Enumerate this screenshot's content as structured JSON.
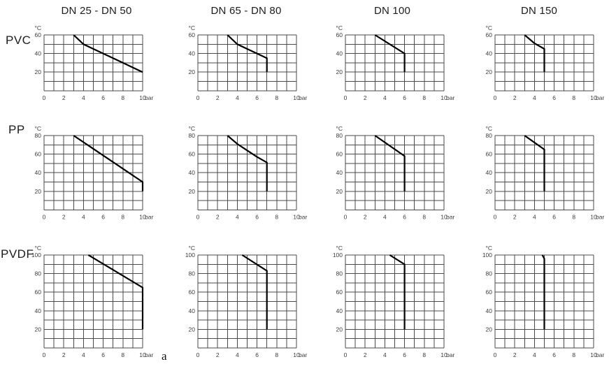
{
  "figure": {
    "label": "a",
    "description": "Pressure-temperature rating diagrams"
  },
  "colors": {
    "grid": "#4a4a4a",
    "line": "#000000",
    "text": "#3c3c3c",
    "heading": "#1c1c1c",
    "background": "#ffffff"
  },
  "columns": [
    "DN 25 - DN 50",
    "DN 65 - DN 80",
    "DN 100",
    "DN 150"
  ],
  "rows": [
    "PVC",
    "PP",
    "PVDF"
  ],
  "chart_data": [
    {
      "material": "PVC",
      "size_range": "DN 25 - DN 50",
      "type": "line",
      "xlabel": "bar",
      "ylabel": "°C",
      "xlim": [
        0,
        10
      ],
      "ylim": [
        0,
        60
      ],
      "xticks": [
        0,
        2,
        4,
        6,
        8,
        10
      ],
      "yticks": [
        20,
        40,
        60
      ],
      "x_grid_step": 1,
      "y_grid_step": 10,
      "grid": true,
      "points": [
        [
          3,
          60
        ],
        [
          4,
          50
        ],
        [
          5,
          45
        ],
        [
          6,
          40
        ],
        [
          7,
          35
        ],
        [
          8,
          30
        ],
        [
          9,
          25
        ],
        [
          10,
          20
        ]
      ]
    },
    {
      "material": "PVC",
      "size_range": "DN 65 - DN 80",
      "type": "line",
      "xlabel": "bar",
      "ylabel": "°C",
      "xlim": [
        0,
        10
      ],
      "ylim": [
        0,
        60
      ],
      "xticks": [
        0,
        2,
        4,
        6,
        8,
        10
      ],
      "yticks": [
        20,
        40,
        60
      ],
      "x_grid_step": 1,
      "y_grid_step": 10,
      "grid": true,
      "points": [
        [
          3,
          60
        ],
        [
          4,
          50
        ],
        [
          5,
          45
        ],
        [
          6,
          40
        ],
        [
          7,
          35
        ],
        [
          7,
          20
        ]
      ]
    },
    {
      "material": "PVC",
      "size_range": "DN 100",
      "type": "line",
      "xlabel": "bar",
      "ylabel": "°C",
      "xlim": [
        0,
        10
      ],
      "ylim": [
        0,
        60
      ],
      "xticks": [
        0,
        2,
        4,
        6,
        8,
        10
      ],
      "yticks": [
        20,
        40,
        60
      ],
      "x_grid_step": 1,
      "y_grid_step": 10,
      "grid": true,
      "points": [
        [
          3,
          60
        ],
        [
          6,
          40
        ],
        [
          6,
          20
        ]
      ]
    },
    {
      "material": "PVC",
      "size_range": "DN 150",
      "type": "line",
      "xlabel": "bar",
      "ylabel": "°C",
      "xlim": [
        0,
        10
      ],
      "ylim": [
        0,
        60
      ],
      "xticks": [
        0,
        2,
        4,
        6,
        8,
        10
      ],
      "yticks": [
        20,
        40,
        60
      ],
      "x_grid_step": 1,
      "y_grid_step": 10,
      "grid": true,
      "points": [
        [
          3,
          60
        ],
        [
          4,
          51
        ],
        [
          5,
          45
        ],
        [
          5,
          20
        ]
      ]
    },
    {
      "material": "PP",
      "size_range": "DN 25 - DN 50",
      "type": "line",
      "xlabel": "bar",
      "ylabel": "°C",
      "xlim": [
        0,
        10
      ],
      "ylim": [
        0,
        80
      ],
      "xticks": [
        0,
        2,
        4,
        6,
        8,
        10
      ],
      "yticks": [
        20,
        40,
        60,
        80
      ],
      "x_grid_step": 1,
      "y_grid_step": 10,
      "grid": true,
      "points": [
        [
          3,
          80
        ],
        [
          10,
          30
        ],
        [
          10,
          20
        ]
      ]
    },
    {
      "material": "PP",
      "size_range": "DN 65 - DN 80",
      "type": "line",
      "xlabel": "bar",
      "ylabel": "°C",
      "xlim": [
        0,
        10
      ],
      "ylim": [
        0,
        80
      ],
      "xticks": [
        0,
        2,
        4,
        6,
        8,
        10
      ],
      "yticks": [
        20,
        40,
        60,
        80
      ],
      "x_grid_step": 1,
      "y_grid_step": 10,
      "grid": true,
      "points": [
        [
          3,
          80
        ],
        [
          4,
          71
        ],
        [
          5,
          64
        ],
        [
          6,
          57
        ],
        [
          7,
          51
        ],
        [
          7,
          20
        ]
      ]
    },
    {
      "material": "PP",
      "size_range": "DN 100",
      "type": "line",
      "xlabel": "bar",
      "ylabel": "°C",
      "xlim": [
        0,
        10
      ],
      "ylim": [
        0,
        80
      ],
      "xticks": [
        0,
        2,
        4,
        6,
        8,
        10
      ],
      "yticks": [
        20,
        40,
        60,
        80
      ],
      "x_grid_step": 1,
      "y_grid_step": 10,
      "grid": true,
      "points": [
        [
          3,
          80
        ],
        [
          6,
          58
        ],
        [
          6,
          20
        ]
      ]
    },
    {
      "material": "PP",
      "size_range": "DN 150",
      "type": "line",
      "xlabel": "bar",
      "ylabel": "°C",
      "xlim": [
        0,
        10
      ],
      "ylim": [
        0,
        80
      ],
      "xticks": [
        0,
        2,
        4,
        6,
        8,
        10
      ],
      "yticks": [
        20,
        40,
        60,
        80
      ],
      "x_grid_step": 1,
      "y_grid_step": 10,
      "grid": true,
      "points": [
        [
          3,
          80
        ],
        [
          5,
          65
        ],
        [
          5,
          20
        ]
      ]
    },
    {
      "material": "PVDF",
      "size_range": "DN 25 - DN 50",
      "type": "line",
      "xlabel": "bar",
      "ylabel": "°C",
      "xlim": [
        0,
        10
      ],
      "ylim": [
        0,
        100
      ],
      "xticks": [
        0,
        2,
        4,
        6,
        8,
        10
      ],
      "yticks": [
        20,
        40,
        60,
        80,
        100
      ],
      "x_grid_step": 1,
      "y_grid_step": 10,
      "grid": true,
      "points": [
        [
          4.5,
          100
        ],
        [
          10,
          65
        ],
        [
          10,
          20
        ]
      ]
    },
    {
      "material": "PVDF",
      "size_range": "DN 65 - DN 80",
      "type": "line",
      "xlabel": "bar",
      "ylabel": "°C",
      "xlim": [
        0,
        10
      ],
      "ylim": [
        0,
        100
      ],
      "xticks": [
        0,
        2,
        4,
        6,
        8,
        10
      ],
      "yticks": [
        20,
        40,
        60,
        80,
        100
      ],
      "x_grid_step": 1,
      "y_grid_step": 10,
      "grid": true,
      "points": [
        [
          4.5,
          100
        ],
        [
          7,
          83
        ],
        [
          7,
          20
        ]
      ]
    },
    {
      "material": "PVDF",
      "size_range": "DN 100",
      "type": "line",
      "xlabel": "bar",
      "ylabel": "°C",
      "xlim": [
        0,
        10
      ],
      "ylim": [
        0,
        100
      ],
      "xticks": [
        0,
        2,
        4,
        6,
        8,
        10
      ],
      "yticks": [
        20,
        40,
        60,
        80,
        100
      ],
      "x_grid_step": 1,
      "y_grid_step": 10,
      "grid": true,
      "points": [
        [
          4.5,
          100
        ],
        [
          6,
          90
        ],
        [
          6,
          20
        ]
      ]
    },
    {
      "material": "PVDF",
      "size_range": "DN 150",
      "type": "line",
      "xlabel": "bar",
      "ylabel": "°C",
      "xlim": [
        0,
        10
      ],
      "ylim": [
        0,
        100
      ],
      "xticks": [
        0,
        2,
        4,
        6,
        8,
        10
      ],
      "yticks": [
        20,
        40,
        60,
        80,
        100
      ],
      "x_grid_step": 1,
      "y_grid_step": 10,
      "grid": true,
      "points": [
        [
          4.8,
          100
        ],
        [
          5,
          96
        ],
        [
          5,
          20
        ]
      ]
    }
  ]
}
